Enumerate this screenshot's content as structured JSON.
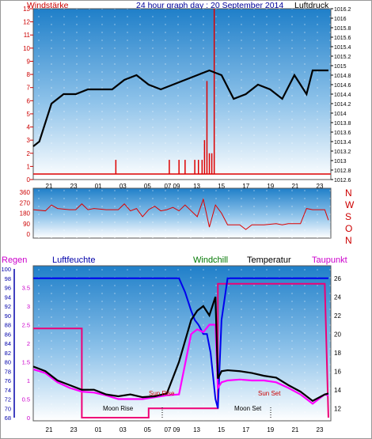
{
  "header": {
    "left_label": "Windstärke",
    "center_title": "24 hour graph day : 20 September 2014",
    "right_label": "Luftdruck"
  },
  "bottom_header": {
    "regen": "Regen",
    "luftfeuchte": "Luftfeuchte",
    "windchill": "Windchill",
    "temperatur": "Temperatur",
    "taupunkt": "Taupunkt"
  },
  "direction_labels": [
    "N",
    "W",
    "S",
    "O",
    "N"
  ],
  "annotations": {
    "sun_rise": "Sun Rise",
    "sun_set": "Sun Set",
    "moon_rise": "Moon Rise",
    "moon_set": "Moon Set"
  },
  "colors": {
    "wind": "#dd0000",
    "pressure": "#000000",
    "humidity": "#0000ee",
    "temperature": "#000000",
    "dewpoint": "#ff00ff",
    "rain": "#ee0077",
    "header_red": "#cc0000",
    "header_blue": "#000099",
    "windchill_green": "#007700"
  },
  "chart_data": [
    {
      "type": "line",
      "title": "24 hour graph day : 20 September 2014",
      "x_tick_labels": [
        "21",
        "23",
        "01",
        "03",
        "05",
        "07 09",
        "13",
        "15",
        "17",
        "19",
        "21",
        "23"
      ],
      "left_axis": {
        "label": "Windstärke",
        "ticks": [
          "0",
          "1",
          "2",
          "3",
          "4",
          "5",
          "6",
          "7",
          "8",
          "9",
          "10",
          "11",
          "12",
          "13"
        ],
        "range": [
          0,
          13
        ]
      },
      "right_axis": {
        "label": "Luftdruck",
        "ticks": [
          "1012.6",
          "1012.8",
          "1013",
          "1013.2",
          "1013.4",
          "1013.6",
          "1013.8",
          "1014",
          "1014.2",
          "1014.4",
          "1014.6",
          "1014.8",
          "1015",
          "1015.2",
          "1015.4",
          "1015.6",
          "1015.8",
          "1016",
          "1016.2"
        ],
        "range": [
          1012.6,
          1016.2
        ]
      },
      "series": [
        {
          "name": "Luftdruck",
          "axis": "right",
          "x": [
            0,
            0.5,
            1.5,
            2.5,
            3.5,
            4.5,
            5.5,
            6.5,
            7.5,
            8.5,
            9.5,
            10.5,
            11.5,
            12.5,
            13.5,
            14.5,
            15.5,
            16.5,
            17.5,
            18.5,
            19.5,
            20.5,
            21.5,
            22.5,
            23,
            24.3
          ],
          "values": [
            1013.3,
            1013.4,
            1014.2,
            1014.4,
            1014.4,
            1014.5,
            1014.5,
            1014.5,
            1014.7,
            1014.8,
            1014.6,
            1014.5,
            1014.6,
            1014.7,
            1014.8,
            1014.9,
            1014.8,
            1014.3,
            1014.4,
            1014.6,
            1014.5,
            1014.3,
            1014.8,
            1014.4,
            1014.9,
            1014.9
          ]
        },
        {
          "name": "Windstärke",
          "axis": "left",
          "type": "bar",
          "x": [
            6.8,
            11.2,
            12.0,
            12.5,
            13.3,
            13.6,
            13.9,
            14.1,
            14.3,
            14.5,
            14.7,
            14.9
          ],
          "values": [
            1.5,
            1.5,
            1.5,
            1.5,
            1.5,
            1.5,
            1.5,
            3,
            7.5,
            2,
            2,
            13
          ]
        }
      ]
    },
    {
      "type": "line",
      "y_tick_labels": [
        "0",
        "90",
        "180",
        "270",
        "360"
      ],
      "range": [
        0,
        360
      ],
      "series": [
        {
          "name": "Windrichtung",
          "x": [
            0,
            1,
            1.5,
            2,
            3,
            3.5,
            4,
            4.5,
            5,
            6,
            7,
            7.5,
            8,
            8.5,
            9,
            9.5,
            10,
            10.5,
            11,
            11.5,
            12,
            12.5,
            13,
            13.5,
            14,
            14.5,
            15,
            15.5,
            16,
            17,
            17.5,
            18,
            19,
            20,
            20.5,
            21,
            22,
            22.5,
            23,
            24,
            24.3
          ],
          "values": [
            210,
            200,
            250,
            220,
            210,
            210,
            260,
            210,
            220,
            210,
            210,
            260,
            200,
            220,
            150,
            210,
            240,
            200,
            210,
            230,
            200,
            250,
            200,
            150,
            300,
            60,
            250,
            180,
            80,
            80,
            40,
            80,
            80,
            90,
            80,
            90,
            90,
            220,
            210,
            210,
            120
          ]
        }
      ]
    },
    {
      "type": "line",
      "x_tick_labels": [
        "21",
        "23",
        "01",
        "03",
        "05",
        "07 09",
        "13",
        "15",
        "17",
        "19",
        "21",
        "23"
      ],
      "left_axis_humidity": {
        "label": "Luftfeuchte",
        "ticks": [
          "68",
          "70",
          "72",
          "74",
          "76",
          "78",
          "80",
          "82",
          "84",
          "86",
          "88",
          "90",
          "92",
          "94",
          "96",
          "98",
          "100"
        ],
        "range": [
          68,
          100
        ]
      },
      "left_axis_rain": {
        "label": "Regen",
        "ticks": [
          "0",
          "0.5",
          "1",
          "1.5",
          "2",
          "2.5",
          "3",
          "3.5"
        ],
        "range": [
          0,
          4
        ]
      },
      "right_axis": {
        "label": "Temperatur",
        "ticks": [
          "12",
          "14",
          "16",
          "18",
          "20",
          "22",
          "24",
          "26"
        ],
        "range": [
          11,
          27
        ]
      },
      "series": [
        {
          "name": "Temperatur",
          "axis": "right",
          "x": [
            0,
            1,
            2,
            3,
            4,
            5,
            6,
            7,
            8,
            9,
            10,
            11,
            12,
            13,
            13.5,
            14,
            14.5,
            15,
            15.2,
            15.5,
            16,
            17,
            18,
            19,
            20,
            21,
            22,
            23,
            24,
            24.3
          ],
          "values": [
            16.5,
            16,
            15,
            14.5,
            14,
            14,
            13.5,
            13.3,
            13.5,
            13.2,
            13.3,
            13.6,
            17,
            21.5,
            22.5,
            23,
            22,
            24,
            15.2,
            16,
            16.1,
            16,
            15.8,
            15.5,
            15.3,
            14.5,
            13.8,
            12.8,
            13.5,
            13.6
          ]
        },
        {
          "name": "Taupunkt",
          "axis": "right",
          "x": [
            0,
            1,
            2,
            3,
            4,
            5,
            6,
            7,
            8,
            9,
            10,
            11,
            12,
            13,
            13.5,
            14,
            14.5,
            15,
            15.2,
            15.5,
            16,
            17,
            18,
            19,
            20,
            21,
            22,
            23,
            24,
            24.3
          ],
          "values": [
            16.2,
            15.8,
            14.8,
            14.2,
            13.8,
            13.7,
            13.4,
            13,
            13,
            13,
            13.2,
            13.4,
            13.5,
            20,
            20.5,
            20.2,
            21,
            21,
            14.2,
            14.8,
            15,
            15.1,
            15,
            15,
            14.8,
            14.2,
            13.5,
            12.5,
            13.5,
            13.4
          ]
        },
        {
          "name": "Luftfeuchte",
          "axis": "left_humidity",
          "x": [
            0,
            12,
            12.5,
            13,
            13.3,
            13.6,
            14,
            14.3,
            14.6,
            15,
            15.2,
            15.5,
            16,
            24,
            24.3
          ],
          "values": [
            98,
            98,
            95,
            91,
            89,
            88,
            86,
            86,
            82,
            72,
            70,
            89,
            98,
            98,
            98
          ]
        },
        {
          "name": "Regen",
          "axis": "left_rain",
          "step": true,
          "x": [
            0,
            4,
            4,
            9.5,
            9.5,
            15.2,
            15.2,
            16,
            16,
            24,
            24.3
          ],
          "values": [
            2.4,
            2.4,
            0,
            0,
            0.25,
            0.25,
            3.6,
            3.6,
            3.6,
            3.6,
            0
          ]
        }
      ]
    }
  ]
}
